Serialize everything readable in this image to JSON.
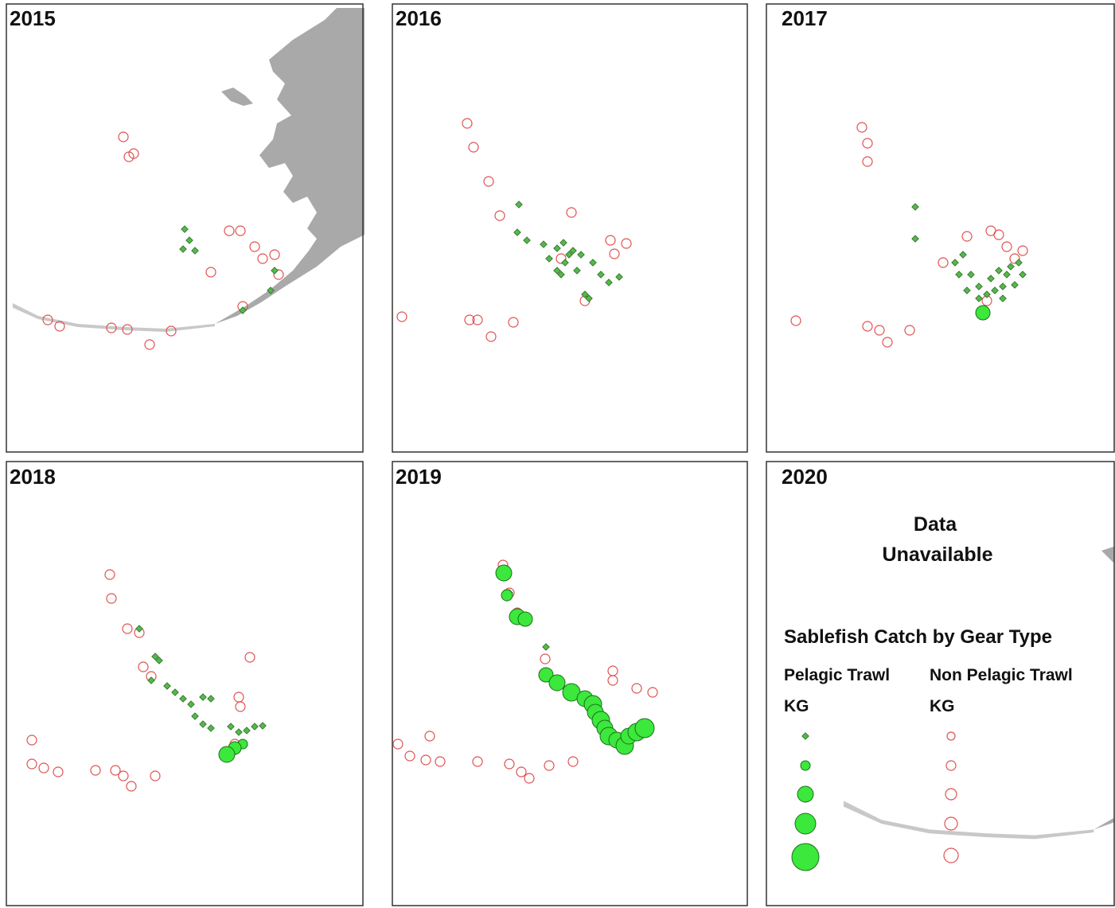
{
  "panels": [
    {
      "year": "2015"
    },
    {
      "year": "2016"
    },
    {
      "year": "2017"
    },
    {
      "year": "2018"
    },
    {
      "year": "2019"
    },
    {
      "year": "2020"
    }
  ],
  "note_lines": [
    "Data",
    "Unavailable"
  ],
  "legend": {
    "title": "Sablefish Catch by Gear Type",
    "groups": [
      {
        "label": "Pelagic Trawl",
        "unit": "KG"
      },
      {
        "label": "Non Pelagic Trawl",
        "unit": "KG"
      }
    ]
  }
}
